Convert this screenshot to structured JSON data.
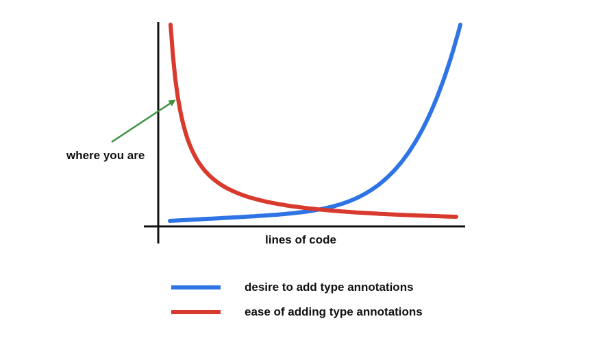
{
  "chart_data": {
    "type": "line",
    "title": "",
    "xlabel": "lines of code",
    "ylabel": "",
    "grid": false,
    "legend_position": "bottom",
    "annotation": {
      "text": "where you are",
      "color": "#3d9140"
    },
    "series": [
      {
        "name": "desire to add type annotations",
        "color": "#2f74e4"
      },
      {
        "name": "ease of adding type annotations",
        "color": "#d93a2e"
      }
    ]
  }
}
